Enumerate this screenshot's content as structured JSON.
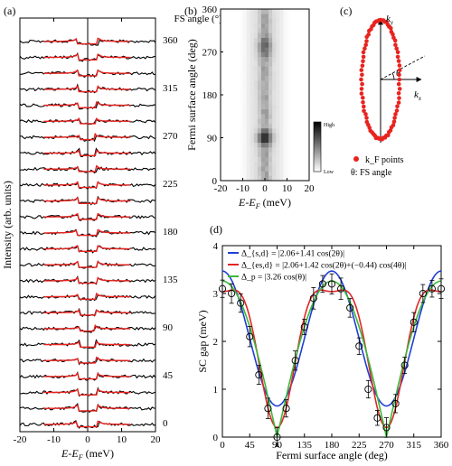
{
  "chart_data": [
    {
      "panel": "(a)",
      "type": "line",
      "xlabel": "E-E_F (meV)",
      "ylabel": "Intensity (arb. units)",
      "annotation": "FS angle (°)=",
      "xlim": [
        -20,
        20
      ],
      "xticks": [
        -20,
        -10,
        0,
        10,
        20
      ],
      "angle_labels": [
        0,
        45,
        90,
        135,
        180,
        225,
        270,
        315,
        360
      ],
      "angles": [
        0,
        15,
        30,
        45,
        60,
        75,
        90,
        105,
        120,
        135,
        150,
        165,
        180,
        195,
        210,
        225,
        240,
        255,
        270,
        285,
        300,
        315,
        330,
        345,
        360
      ],
      "series": [
        {
          "role": "data",
          "color": "#000000"
        },
        {
          "role": "fit",
          "color": "#e8231f"
        }
      ]
    },
    {
      "panel": "(b)",
      "type": "heatmap",
      "xlabel": "E-E_F (meV)",
      "ylabel": "Fermi surface angle (deg)",
      "xlim": [
        -20,
        20
      ],
      "ylim": [
        0,
        360
      ],
      "xticks": [
        -20,
        -10,
        0,
        10,
        20
      ],
      "yticks": [
        0,
        90,
        180,
        270,
        360
      ],
      "colorbar": {
        "high": "High",
        "low": "Low"
      }
    },
    {
      "panel": "(c)",
      "type": "scatter",
      "xlabel": "k_x",
      "ylabel": "k_y",
      "angle_symbol": "θ",
      "legend": [
        "k_F points",
        "θ: FS angle"
      ]
    },
    {
      "panel": "(d)",
      "type": "line",
      "xlabel": "Fermi surface angle (deg)",
      "ylabel": "SC gap (meV)",
      "xlim": [
        0,
        360
      ],
      "ylim": [
        0,
        4
      ],
      "xticks": [
        0,
        45,
        90,
        135,
        180,
        225,
        270,
        315,
        360
      ],
      "yticks": [
        0,
        1,
        2,
        3,
        4
      ],
      "series": [
        {
          "name": "Δ_{s,d} = |2.06+1.41 cos(2θ)|",
          "color": "#1f3fd6",
          "a": 2.06,
          "b": 1.41,
          "c": 0,
          "mode": "sd"
        },
        {
          "name": "Δ_{es,d} = |2.06+1.42 cos(2θ)+(−0.44) cos(4θ)|",
          "color": "#e02626",
          "a": 2.06,
          "b": 1.42,
          "c": -0.44,
          "mode": "sd"
        },
        {
          "name": "Δ_p = |3.26 cos(θ)|",
          "color": "#3cb83c",
          "a": 3.26,
          "mode": "p"
        }
      ],
      "points": {
        "x": [
          0,
          15,
          30,
          45,
          60,
          75,
          90,
          105,
          120,
          135,
          150,
          165,
          180,
          195,
          210,
          225,
          240,
          255,
          270,
          285,
          300,
          315,
          330,
          345,
          360
        ],
        "y": [
          3.1,
          3.0,
          2.8,
          2.1,
          1.3,
          0.6,
          0.0,
          0.6,
          1.6,
          2.3,
          2.9,
          3.2,
          3.2,
          3.1,
          2.7,
          1.9,
          1.0,
          0.4,
          0.2,
          0.7,
          1.5,
          2.4,
          3.0,
          3.1,
          3.1
        ]
      }
    }
  ]
}
